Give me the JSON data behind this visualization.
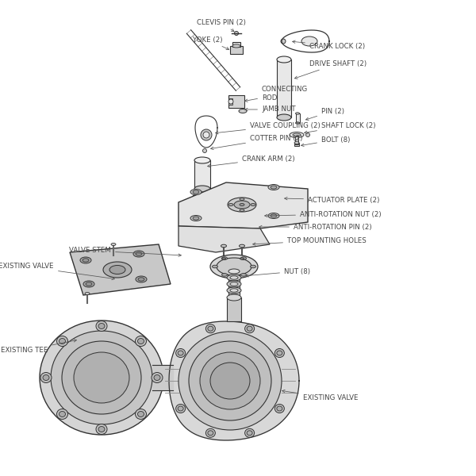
{
  "bg_color": "#ffffff",
  "line_color": "#333333",
  "label_color": "#444444",
  "label_fontsize": 6.2,
  "gray_light": "#e8e8e8",
  "gray_mid": "#cccccc",
  "gray_dark": "#aaaaaa",
  "labels": [
    [
      "CLEVIS PIN (2)",
      248,
      28,
      298,
      42,
      "left"
    ],
    [
      "YOKE (2)",
      243,
      50,
      292,
      64,
      "left"
    ],
    [
      "CRANK LOCK (2)",
      390,
      58,
      365,
      52,
      "left"
    ],
    [
      "DRIVE SHAFT (2)",
      390,
      80,
      368,
      100,
      "left"
    ],
    [
      "CONNECTING\nROD",
      330,
      118,
      305,
      128,
      "left"
    ],
    [
      "JAMB NUT",
      330,
      138,
      305,
      138,
      "left"
    ],
    [
      "VALVE COUPLING (2)",
      315,
      158,
      268,
      168,
      "left"
    ],
    [
      "COTTER PIN (2)",
      315,
      174,
      262,
      188,
      "left"
    ],
    [
      "CRANK ARM (2)",
      305,
      200,
      258,
      210,
      "left"
    ],
    [
      "PIN (2)",
      405,
      140,
      382,
      152,
      "left"
    ],
    [
      "SHAFT LOCK (2)",
      405,
      158,
      380,
      168,
      "left"
    ],
    [
      "BOLT (8)",
      405,
      176,
      376,
      184,
      "left"
    ],
    [
      "ACTUATOR PLATE (2)",
      388,
      252,
      355,
      250,
      "left"
    ],
    [
      "ANTI-ROTATION NUT (2)",
      378,
      270,
      330,
      272,
      "left"
    ],
    [
      "ANTI-ROTATION PIN (2)",
      370,
      286,
      323,
      286,
      "left"
    ],
    [
      "TOP MOUNTING HOLES",
      362,
      303,
      315,
      308,
      "left"
    ],
    [
      "VALVE STEM",
      140,
      316,
      232,
      322,
      "right"
    ],
    [
      "EXISTING VALVE",
      68,
      336,
      148,
      352,
      "right"
    ],
    [
      "NUT (8)",
      358,
      342,
      306,
      348,
      "left"
    ],
    [
      "EXISTING TEE",
      60,
      442,
      100,
      428,
      "right"
    ],
    [
      "EXISTING VALVE",
      382,
      502,
      352,
      492,
      "left"
    ]
  ]
}
